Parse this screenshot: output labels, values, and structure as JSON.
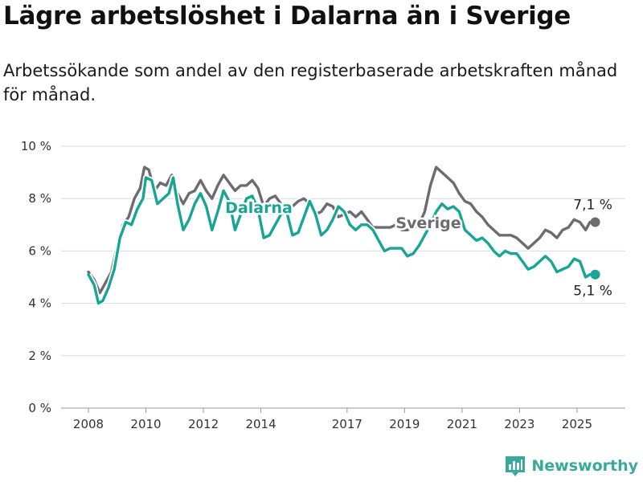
{
  "title": "Lägre arbetslöshet i Dalarna än i Sverige",
  "subtitle": "Arbetssökande som andel av den registerbaserade arbetskraften månad för månad.",
  "brand": "Newsworthy",
  "colors": {
    "sverige": "#6d6b70",
    "dalarna": "#17a596",
    "grid": "#d9d9d9",
    "brand": "#38aa9c"
  },
  "chart_data": {
    "type": "line",
    "ylim": [
      0,
      10
    ],
    "xlim": [
      2008,
      2026.4
    ],
    "y_ticks": [
      {
        "value": 0,
        "label": "0 %"
      },
      {
        "value": 2,
        "label": "2 %"
      },
      {
        "value": 4,
        "label": "4 %"
      },
      {
        "value": 6,
        "label": "6 %"
      },
      {
        "value": 8,
        "label": "8 %"
      },
      {
        "value": 10,
        "label": "10 %"
      }
    ],
    "x_ticks": [
      "2008",
      "2010",
      "2012",
      "2014",
      "2017",
      "2019",
      "2021",
      "2023",
      "2025"
    ],
    "end_labels": {
      "sverige": "7,1 %",
      "dalarna": "5,1 %"
    },
    "series": [
      {
        "name": "Sverige",
        "key": "sverige",
        "points": [
          [
            2008.0,
            5.2
          ],
          [
            2008.2,
            4.9
          ],
          [
            2008.4,
            4.4
          ],
          [
            2008.6,
            4.8
          ],
          [
            2008.8,
            5.2
          ],
          [
            2009.0,
            6.2
          ],
          [
            2009.2,
            7.0
          ],
          [
            2009.4,
            7.3
          ],
          [
            2009.6,
            8.0
          ],
          [
            2009.8,
            8.4
          ],
          [
            2009.95,
            9.2
          ],
          [
            2010.1,
            9.1
          ],
          [
            2010.3,
            8.3
          ],
          [
            2010.5,
            8.6
          ],
          [
            2010.7,
            8.5
          ],
          [
            2010.9,
            8.9
          ],
          [
            2011.1,
            8.2
          ],
          [
            2011.3,
            7.8
          ],
          [
            2011.5,
            8.2
          ],
          [
            2011.7,
            8.3
          ],
          [
            2011.9,
            8.7
          ],
          [
            2012.1,
            8.3
          ],
          [
            2012.3,
            8.0
          ],
          [
            2012.5,
            8.5
          ],
          [
            2012.7,
            8.9
          ],
          [
            2012.9,
            8.6
          ],
          [
            2013.1,
            8.3
          ],
          [
            2013.3,
            8.5
          ],
          [
            2013.5,
            8.5
          ],
          [
            2013.7,
            8.7
          ],
          [
            2013.9,
            8.4
          ],
          [
            2014.1,
            7.7
          ],
          [
            2014.3,
            8.0
          ],
          [
            2014.5,
            8.1
          ],
          [
            2014.7,
            7.8
          ],
          [
            2014.9,
            7.5
          ],
          [
            2015.1,
            7.7
          ],
          [
            2015.3,
            7.9
          ],
          [
            2015.5,
            8.0
          ],
          [
            2015.7,
            7.8
          ],
          [
            2015.9,
            7.4
          ],
          [
            2016.1,
            7.5
          ],
          [
            2016.3,
            7.8
          ],
          [
            2016.5,
            7.7
          ],
          [
            2016.7,
            7.3
          ],
          [
            2016.9,
            7.4
          ],
          [
            2017.1,
            7.5
          ],
          [
            2017.3,
            7.3
          ],
          [
            2017.5,
            7.5
          ],
          [
            2017.7,
            7.2
          ],
          [
            2017.9,
            6.9
          ],
          [
            2018.1,
            6.9
          ],
          [
            2018.3,
            6.9
          ],
          [
            2018.5,
            6.9
          ],
          [
            2018.7,
            7.0
          ],
          [
            2018.9,
            6.8
          ],
          [
            2019.1,
            6.8
          ],
          [
            2019.3,
            6.9
          ],
          [
            2019.5,
            7.0
          ],
          [
            2019.7,
            7.5
          ],
          [
            2019.9,
            8.5
          ],
          [
            2020.1,
            9.2
          ],
          [
            2020.3,
            9.0
          ],
          [
            2020.5,
            8.8
          ],
          [
            2020.7,
            8.6
          ],
          [
            2020.9,
            8.2
          ],
          [
            2021.1,
            7.9
          ],
          [
            2021.3,
            7.8
          ],
          [
            2021.5,
            7.5
          ],
          [
            2021.7,
            7.3
          ],
          [
            2021.9,
            7.0
          ],
          [
            2022.1,
            6.8
          ],
          [
            2022.3,
            6.6
          ],
          [
            2022.5,
            6.6
          ],
          [
            2022.7,
            6.6
          ],
          [
            2022.9,
            6.5
          ],
          [
            2023.1,
            6.3
          ],
          [
            2023.3,
            6.1
          ],
          [
            2023.5,
            6.3
          ],
          [
            2023.7,
            6.5
          ],
          [
            2023.9,
            6.8
          ],
          [
            2024.1,
            6.7
          ],
          [
            2024.3,
            6.5
          ],
          [
            2024.5,
            6.8
          ],
          [
            2024.7,
            6.9
          ],
          [
            2024.9,
            7.2
          ],
          [
            2025.1,
            7.1
          ],
          [
            2025.3,
            6.8
          ],
          [
            2025.45,
            7.1
          ],
          [
            2025.55,
            7.1
          ]
        ]
      },
      {
        "name": "Dalarna",
        "key": "dalarna",
        "points": [
          [
            2008.0,
            5.1
          ],
          [
            2008.2,
            4.7
          ],
          [
            2008.35,
            4.0
          ],
          [
            2008.5,
            4.1
          ],
          [
            2008.7,
            4.6
          ],
          [
            2008.9,
            5.3
          ],
          [
            2009.1,
            6.5
          ],
          [
            2009.3,
            7.1
          ],
          [
            2009.5,
            7.0
          ],
          [
            2009.7,
            7.6
          ],
          [
            2009.9,
            8.0
          ],
          [
            2010.0,
            8.8
          ],
          [
            2010.2,
            8.7
          ],
          [
            2010.4,
            7.8
          ],
          [
            2010.6,
            8.0
          ],
          [
            2010.8,
            8.2
          ],
          [
            2010.95,
            8.8
          ],
          [
            2011.1,
            7.8
          ],
          [
            2011.3,
            6.8
          ],
          [
            2011.5,
            7.2
          ],
          [
            2011.7,
            7.8
          ],
          [
            2011.9,
            8.2
          ],
          [
            2012.1,
            7.7
          ],
          [
            2012.3,
            6.8
          ],
          [
            2012.5,
            7.5
          ],
          [
            2012.7,
            8.3
          ],
          [
            2012.9,
            7.9
          ],
          [
            2013.1,
            6.8
          ],
          [
            2013.3,
            7.4
          ],
          [
            2013.5,
            8.0
          ],
          [
            2013.7,
            8.1
          ],
          [
            2013.9,
            7.6
          ],
          [
            2014.1,
            6.5
          ],
          [
            2014.3,
            6.6
          ],
          [
            2014.5,
            7.0
          ],
          [
            2014.7,
            7.4
          ],
          [
            2014.9,
            7.5
          ],
          [
            2015.1,
            6.6
          ],
          [
            2015.3,
            6.7
          ],
          [
            2015.5,
            7.3
          ],
          [
            2015.7,
            7.9
          ],
          [
            2015.9,
            7.4
          ],
          [
            2016.1,
            6.6
          ],
          [
            2016.3,
            6.8
          ],
          [
            2016.5,
            7.2
          ],
          [
            2016.7,
            7.7
          ],
          [
            2016.9,
            7.5
          ],
          [
            2017.1,
            7.0
          ],
          [
            2017.3,
            6.8
          ],
          [
            2017.5,
            7.0
          ],
          [
            2017.7,
            7.0
          ],
          [
            2017.9,
            6.8
          ],
          [
            2018.1,
            6.4
          ],
          [
            2018.3,
            6.0
          ],
          [
            2018.5,
            6.1
          ],
          [
            2018.7,
            6.1
          ],
          [
            2018.9,
            6.1
          ],
          [
            2019.1,
            5.8
          ],
          [
            2019.3,
            5.9
          ],
          [
            2019.5,
            6.2
          ],
          [
            2019.7,
            6.6
          ],
          [
            2019.9,
            7.0
          ],
          [
            2020.1,
            7.5
          ],
          [
            2020.3,
            7.8
          ],
          [
            2020.5,
            7.6
          ],
          [
            2020.7,
            7.7
          ],
          [
            2020.9,
            7.5
          ],
          [
            2021.1,
            6.8
          ],
          [
            2021.3,
            6.6
          ],
          [
            2021.5,
            6.4
          ],
          [
            2021.7,
            6.5
          ],
          [
            2021.9,
            6.3
          ],
          [
            2022.1,
            6.0
          ],
          [
            2022.3,
            5.8
          ],
          [
            2022.5,
            6.0
          ],
          [
            2022.7,
            5.9
          ],
          [
            2022.9,
            5.9
          ],
          [
            2023.1,
            5.6
          ],
          [
            2023.3,
            5.3
          ],
          [
            2023.5,
            5.4
          ],
          [
            2023.7,
            5.6
          ],
          [
            2023.9,
            5.8
          ],
          [
            2024.1,
            5.6
          ],
          [
            2024.3,
            5.2
          ],
          [
            2024.5,
            5.3
          ],
          [
            2024.7,
            5.4
          ],
          [
            2024.9,
            5.7
          ],
          [
            2025.1,
            5.6
          ],
          [
            2025.3,
            5.0
          ],
          [
            2025.45,
            5.1
          ],
          [
            2025.55,
            5.1
          ]
        ]
      }
    ]
  }
}
